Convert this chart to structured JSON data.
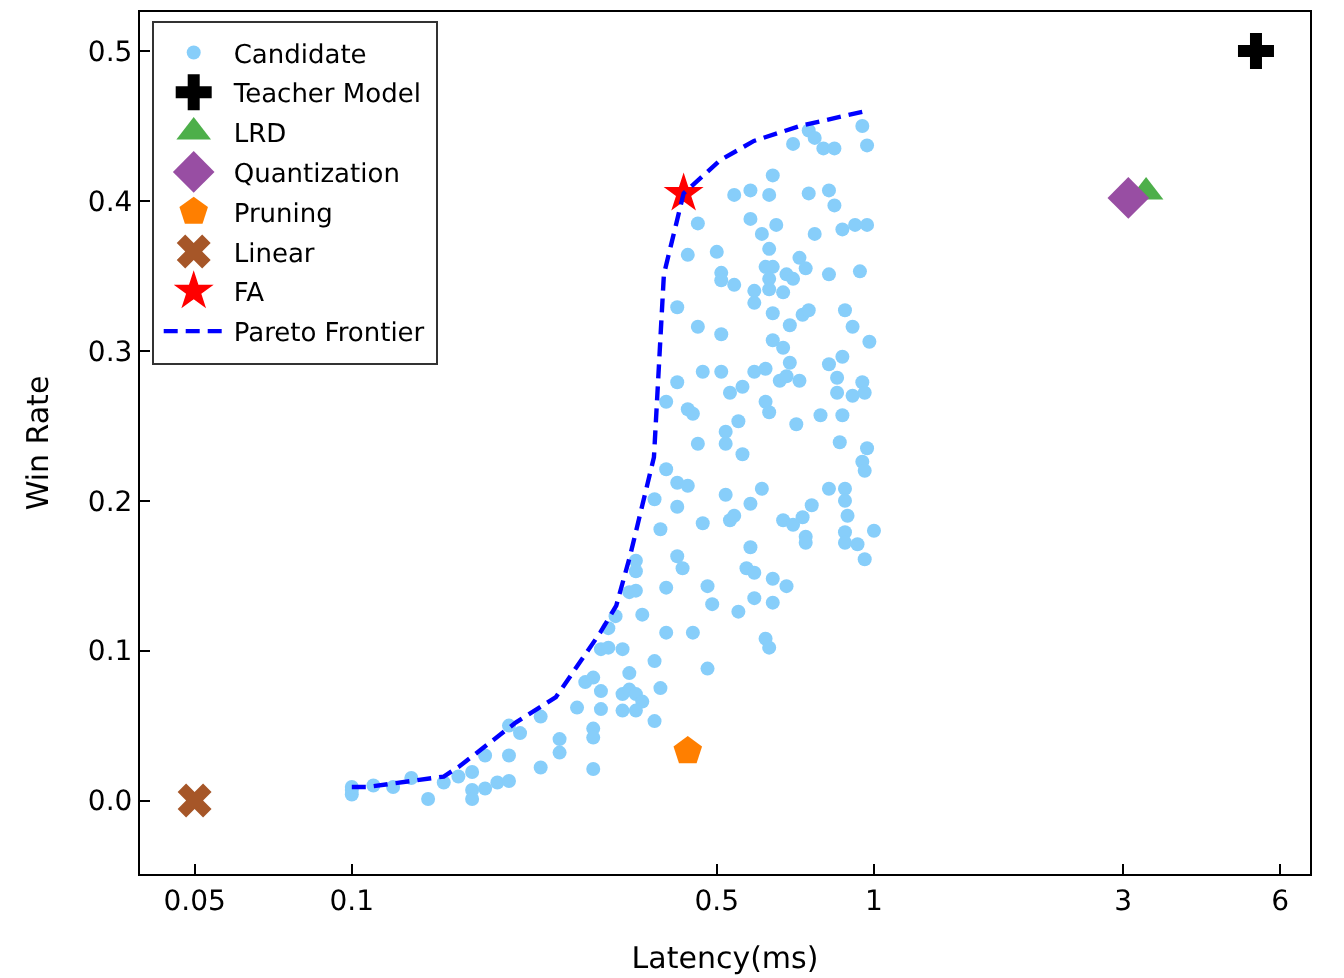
{
  "chart_data": {
    "type": "scatter",
    "xlabel": "Latency(ms)",
    "ylabel": "Win Rate",
    "log": "x",
    "legend": "top left",
    "xlim": [
      0.0393,
      6.84
    ],
    "xticks": [
      0.05,
      0.1,
      0.5,
      1,
      3,
      6
    ],
    "ylim": [
      -0.049,
      0.526
    ],
    "yticks": [
      {
        "value": 0,
        "label": "0.0"
      },
      {
        "value": 0.1,
        "label": "0.1"
      },
      {
        "value": 0.2,
        "label": "0.2"
      },
      {
        "value": 0.3,
        "label": "0.3"
      },
      {
        "value": 0.4,
        "label": "0.4"
      },
      {
        "value": 0.5,
        "label": "0.5"
      }
    ],
    "series": [
      {
        "name": "Candidate",
        "marker": "circle",
        "color": "#87cefa",
        "x": [
          0.75,
          0.95,
          0.7,
          0.77,
          0.8,
          0.84,
          0.97,
          0.64,
          0.54,
          0.58,
          0.63,
          0.75,
          0.82,
          0.84,
          0.46,
          0.58,
          0.61,
          0.65,
          0.77,
          0.87,
          0.92,
          0.97,
          0.44,
          0.5,
          0.63,
          0.72,
          0.51,
          0.51,
          0.54,
          0.62,
          0.64,
          0.63,
          0.68,
          0.7,
          0.74,
          0.82,
          0.94,
          0.59,
          0.63,
          0.67,
          0.59,
          0.42,
          0.64,
          0.73,
          0.75,
          0.88,
          0.46,
          0.51,
          0.69,
          0.91,
          0.64,
          0.67,
          0.98,
          0.47,
          0.51,
          0.59,
          0.62,
          0.69,
          0.66,
          0.68,
          0.72,
          0.82,
          0.87,
          0.85,
          0.95,
          0.42,
          0.4,
          0.53,
          0.56,
          0.62,
          0.63,
          0.85,
          0.91,
          0.96,
          0.44,
          0.45,
          0.55,
          0.71,
          0.79,
          0.87,
          0.52,
          0.52,
          0.46,
          0.56,
          0.86,
          0.97,
          0.4,
          0.95,
          0.96,
          0.42,
          0.44,
          0.52,
          0.61,
          0.58,
          0.42,
          0.38,
          0.53,
          0.54,
          0.47,
          0.39,
          0.67,
          0.7,
          0.73,
          0.76,
          0.82,
          0.88,
          0.88,
          0.89,
          0.74,
          0.74,
          0.88,
          0.88,
          1.0,
          0.93,
          0.96,
          0.58,
          0.42,
          0.43,
          0.57,
          0.59,
          0.64,
          0.68,
          0.35,
          0.35,
          0.34,
          0.35,
          0.36,
          0.4,
          0.48,
          0.49,
          0.59,
          0.64,
          0.55,
          0.32,
          0.31,
          0.4,
          0.45,
          0.62,
          0.63,
          0.3,
          0.31,
          0.33,
          0.38,
          0.48,
          0.34,
          0.28,
          0.29,
          0.3,
          0.33,
          0.34,
          0.35,
          0.36,
          0.39,
          0.27,
          0.3,
          0.33,
          0.35,
          0.38,
          0.23,
          0.2,
          0.21,
          0.25,
          0.25,
          0.29,
          0.29,
          0.2,
          0.18,
          0.23,
          0.29,
          0.17,
          0.16,
          0.17,
          0.17,
          0.18,
          0.19,
          0.2,
          0.15,
          0.14,
          0.13,
          0.12,
          0.11,
          0.1,
          0.1,
          0.1
        ],
        "values": [
          0.447,
          0.45,
          0.438,
          0.442,
          0.435,
          0.435,
          0.437,
          0.417,
          0.404,
          0.407,
          0.404,
          0.405,
          0.407,
          0.397,
          0.385,
          0.388,
          0.378,
          0.384,
          0.378,
          0.381,
          0.384,
          0.384,
          0.364,
          0.366,
          0.368,
          0.362,
          0.352,
          0.347,
          0.344,
          0.356,
          0.356,
          0.348,
          0.351,
          0.348,
          0.355,
          0.351,
          0.353,
          0.34,
          0.341,
          0.339,
          0.332,
          0.329,
          0.325,
          0.324,
          0.327,
          0.327,
          0.316,
          0.311,
          0.317,
          0.316,
          0.307,
          0.302,
          0.306,
          0.286,
          0.286,
          0.286,
          0.288,
          0.292,
          0.28,
          0.283,
          0.28,
          0.291,
          0.296,
          0.282,
          0.279,
          0.279,
          0.266,
          0.272,
          0.276,
          0.266,
          0.259,
          0.272,
          0.27,
          0.272,
          0.261,
          0.258,
          0.253,
          0.251,
          0.257,
          0.257,
          0.246,
          0.238,
          0.238,
          0.231,
          0.239,
          0.235,
          0.221,
          0.226,
          0.22,
          0.212,
          0.21,
          0.204,
          0.208,
          0.198,
          0.196,
          0.201,
          0.187,
          0.19,
          0.185,
          0.181,
          0.187,
          0.184,
          0.189,
          0.197,
          0.208,
          0.208,
          0.2,
          0.19,
          0.176,
          0.172,
          0.179,
          0.172,
          0.18,
          0.171,
          0.161,
          0.169,
          0.163,
          0.155,
          0.155,
          0.152,
          0.148,
          0.143,
          0.16,
          0.153,
          0.139,
          0.14,
          0.124,
          0.142,
          0.143,
          0.131,
          0.135,
          0.132,
          0.126,
          0.123,
          0.115,
          0.112,
          0.112,
          0.108,
          0.102,
          0.101,
          0.102,
          0.101,
          0.093,
          0.088,
          0.085,
          0.079,
          0.082,
          0.073,
          0.071,
          0.074,
          0.071,
          0.066,
          0.075,
          0.062,
          0.061,
          0.06,
          0.06,
          0.053,
          0.056,
          0.05,
          0.045,
          0.041,
          0.032,
          0.048,
          0.042,
          0.03,
          0.03,
          0.022,
          0.021,
          0.019,
          0.016,
          0.007,
          0.001,
          0.008,
          0.012,
          0.013,
          0.012,
          0.001,
          0.015,
          0.009,
          0.01,
          0.004,
          0.007,
          0.009
        ]
      },
      {
        "name": "Teacher Model",
        "marker": "cross",
        "color": "#000000",
        "x": [
          5.39
        ],
        "values": [
          0.5
        ]
      },
      {
        "name": "LRD",
        "marker": "triangle",
        "color": "#4daf4a",
        "x": [
          3.32
        ],
        "values": [
          0.406
        ]
      },
      {
        "name": "Quantization",
        "marker": "diamond",
        "color": "#984ea3",
        "x": [
          3.07
        ],
        "values": [
          0.402
        ]
      },
      {
        "name": "Pruning",
        "color": "#ff7f00",
        "x": [
          0.44
        ],
        "values": [
          0.033
        ]
      },
      {
        "name": "Linear",
        "color": "#a65628",
        "x": [
          0.05
        ],
        "values": [
          0.0
        ]
      },
      {
        "name": "FA",
        "marker": "star",
        "color": "#ff0000",
        "x": [
          0.432
        ],
        "values": [
          0.405
        ]
      },
      {
        "name": "Pareto Frontier",
        "type": "line",
        "marker": "none",
        "line_style": "dashed",
        "color": "#0000ff",
        "x": [
          0.1,
          0.107,
          0.15,
          0.161,
          0.206,
          0.246,
          0.299,
          0.321,
          0.341,
          0.379,
          0.396,
          0.432,
          0.507,
          0.589,
          0.722,
          0.966
        ],
        "values": [
          0.009,
          0.009,
          0.016,
          0.023,
          0.052,
          0.069,
          0.112,
          0.13,
          0.163,
          0.229,
          0.351,
          0.405,
          0.427,
          0.44,
          0.45,
          0.46
        ]
      }
    ]
  }
}
